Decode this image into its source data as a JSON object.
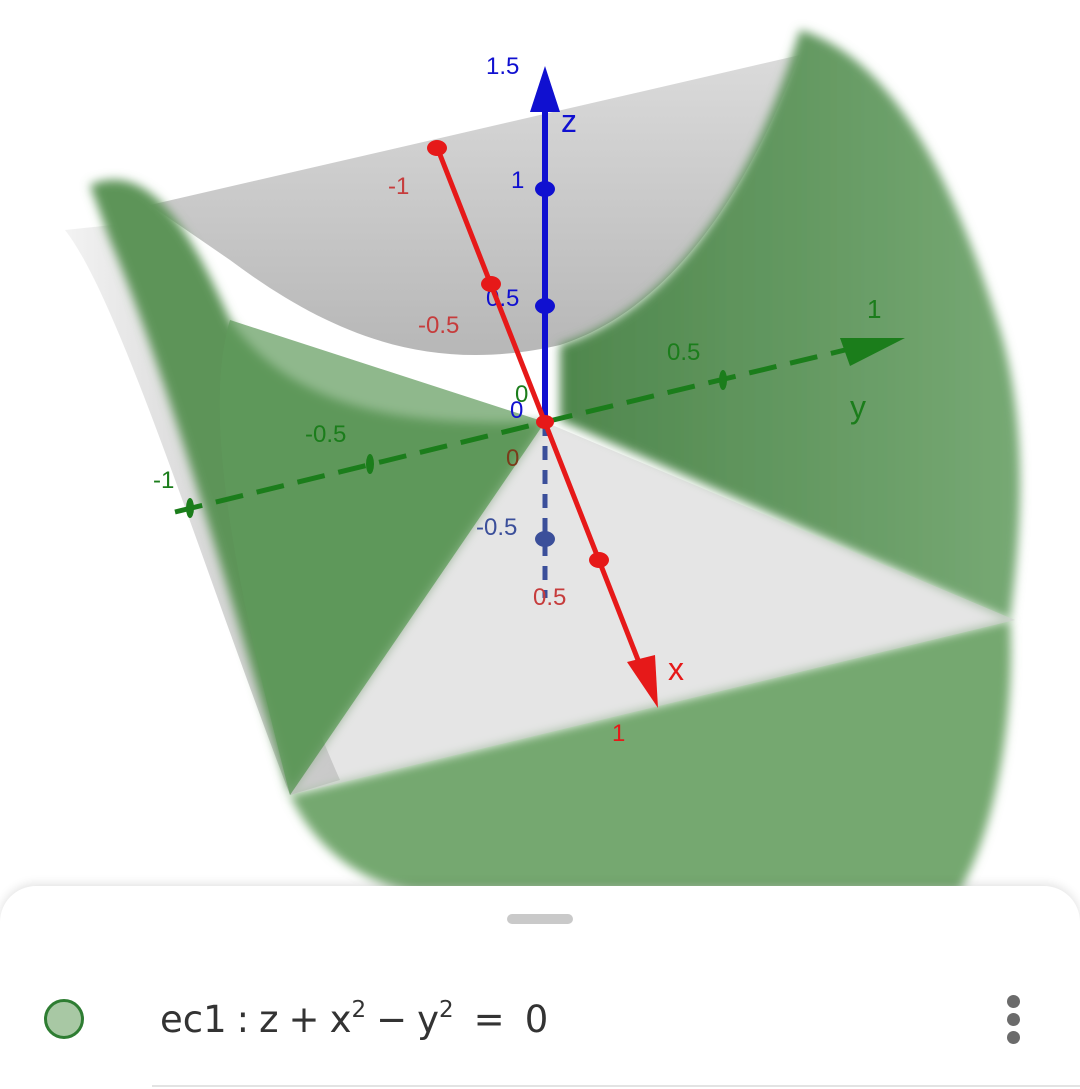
{
  "graph": {
    "axes": {
      "x": {
        "name": "x",
        "color": "#e61919",
        "ticks": [
          "-1",
          "-0.5",
          "0",
          "0.5",
          "1"
        ]
      },
      "y": {
        "name": "y",
        "color": "#1b7d1b",
        "ticks": [
          "-1",
          "-0.5",
          "0",
          "0.5",
          "1"
        ]
      },
      "z": {
        "name": "z",
        "color": "#1010d0",
        "ticks": [
          "-0.5",
          "0",
          "0.5",
          "1",
          "1.5"
        ]
      }
    },
    "surface": {
      "name": "ec1",
      "color": "#5f9a5b",
      "underside_color": "#bdbdbd"
    }
  },
  "algebra": {
    "items": [
      {
        "name": "ec1",
        "sep": ":",
        "lhs_z": "z",
        "plus": "+",
        "x": "x",
        "x_exp": "2",
        "minus": "−",
        "y": "y",
        "y_exp": "2",
        "eq": "=",
        "rhs": "0",
        "color": "#2e7d32",
        "menu_icon": "more-vert-icon"
      }
    ]
  }
}
